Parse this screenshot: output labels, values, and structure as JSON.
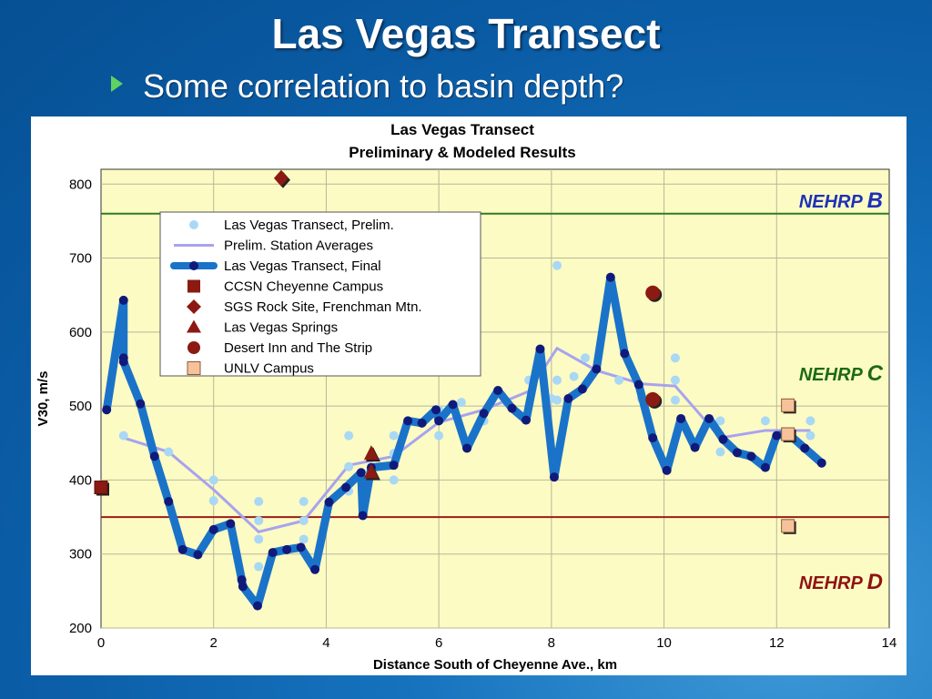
{
  "slide": {
    "title": "Las Vegas Transect",
    "bullet": "Some correlation to basin depth?"
  },
  "colors": {
    "background": "#0a5fa8",
    "plot_bg": "#fcfbc3",
    "final_line": "#1a73c9",
    "final_marker": "#101a7a",
    "prelim_point": "#a9d8f5",
    "station_avg": "#a8a3ee",
    "nehrp_b_line": "#2e7d1f",
    "nehrp_cd_line": "#9b1c1c",
    "accent_green": "#5fd35f"
  },
  "chart_data": {
    "type": "line",
    "title": "Las Vegas Transect",
    "subtitle": "Preliminary & Modeled Results",
    "xlabel": "Distance South of Cheyenne Ave., km",
    "ylabel": "V30, m/s",
    "xlim": [
      0,
      14
    ],
    "ylim": [
      200,
      820
    ],
    "xticks": [
      0,
      2,
      4,
      6,
      8,
      10,
      12,
      14
    ],
    "yticks": [
      200,
      300,
      400,
      500,
      600,
      700,
      800
    ],
    "grid": true,
    "legend_position": "top-left",
    "legend": [
      "Las Vegas Transect, Prelim.",
      "Prelim. Station Averages",
      "Las Vegas Transect, Final",
      "CCSN Cheyenne Campus",
      "SGS Rock Site, Frenchman Mtn.",
      "Las Vegas Springs",
      "Desert Inn and The Strip",
      "UNLV Campus"
    ],
    "reference_lines": [
      {
        "label": "NEHRP B",
        "y": 760
      },
      {
        "label": "NEHRP C",
        "y": null
      },
      {
        "label": "NEHRP D",
        "y": 350
      }
    ],
    "zone_labels": [
      "NEHRP B",
      "NEHRP C",
      "NEHRP D"
    ],
    "series": [
      {
        "name": "Las Vegas Transect, Final",
        "x": [
          0.1,
          0.4,
          0.4,
          0.4,
          0.7,
          0.95,
          1.2,
          1.45,
          1.72,
          2.0,
          2.3,
          2.5,
          2.52,
          2.78,
          3.05,
          3.3,
          3.55,
          3.8,
          4.05,
          4.35,
          4.62,
          4.65,
          4.8,
          5.2,
          5.45,
          5.7,
          5.95,
          6.0,
          6.25,
          6.5,
          6.8,
          7.05,
          7.3,
          7.55,
          7.8,
          8.05,
          8.3,
          8.55,
          8.8,
          9.05,
          9.3,
          9.55,
          9.8,
          10.05,
          10.3,
          10.55,
          10.8,
          11.05,
          11.3,
          11.55,
          11.8,
          12.0,
          12.2,
          12.5,
          12.8
        ],
        "y": [
          495,
          643,
          565,
          560,
          503,
          432,
          371,
          306,
          299,
          333,
          341,
          265,
          256,
          230,
          302,
          306,
          309,
          279,
          370,
          390,
          410,
          352,
          417,
          420,
          480,
          477,
          495,
          480,
          502,
          443,
          490,
          521,
          497,
          481,
          577,
          404,
          510,
          523,
          550,
          674,
          571,
          529,
          457,
          413,
          483,
          444,
          483,
          455,
          437,
          432,
          417,
          460,
          463,
          443,
          423
        ]
      },
      {
        "name": "Las Vegas Transect, Prelim.",
        "x": [
          0.4,
          1.2,
          2.0,
          2.0,
          2.8,
          2.8,
          2.8,
          2.8,
          3.6,
          3.6,
          3.6,
          4.4,
          4.4,
          4.4,
          5.2,
          5.2,
          5.2,
          6.0,
          6.0,
          6.4,
          6.8,
          7.2,
          7.6,
          8.0,
          8.1,
          8.1,
          8.1,
          8.4,
          8.6,
          8.8,
          9.2,
          9.6,
          10.2,
          10.2,
          10.2,
          11.0,
          11.0,
          11.8,
          12.2,
          12.6,
          12.6
        ],
        "y": [
          460,
          438,
          400,
          372,
          371,
          345,
          320,
          283,
          371,
          345,
          320,
          460,
          418,
          385,
          460,
          436,
          400,
          495,
          460,
          505,
          480,
          505,
          535,
          510,
          690,
          535,
          508,
          540,
          565,
          550,
          535,
          510,
          565,
          535,
          508,
          480,
          438,
          480,
          460,
          480,
          460
        ]
      },
      {
        "name": "Prelim. Station Averages",
        "x": [
          0.4,
          1.2,
          2.0,
          2.8,
          3.6,
          4.4,
          5.2,
          6.0,
          6.8,
          7.6,
          8.1,
          8.8,
          9.6,
          10.2,
          11.0,
          11.8,
          12.6
        ],
        "y": [
          457,
          438,
          387,
          330,
          345,
          420,
          432,
          478,
          495,
          520,
          578,
          548,
          530,
          527,
          457,
          467,
          467
        ]
      },
      {
        "name": "CCSN Cheyenne Campus",
        "x": [
          0.0
        ],
        "y": [
          390
        ]
      },
      {
        "name": "SGS Rock Site, Frenchman Mtn.",
        "x": [
          3.2
        ],
        "y": [
          808
        ]
      },
      {
        "name": "Las Vegas Springs",
        "x": [
          4.8,
          4.8
        ],
        "y": [
          436,
          411
        ]
      },
      {
        "name": "Desert Inn and The Strip",
        "x": [
          9.8,
          9.8
        ],
        "y": [
          653,
          509
        ]
      },
      {
        "name": "UNLV Campus",
        "x": [
          12.2,
          12.2,
          12.2
        ],
        "y": [
          501,
          462,
          338
        ]
      }
    ]
  }
}
